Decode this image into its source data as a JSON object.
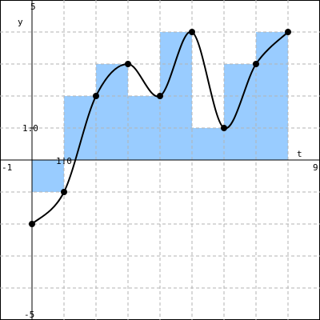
{
  "chart_data": {
    "type": "bar",
    "description_free": true,
    "xlabel": "t",
    "ylabel": "y",
    "xlim": [
      -1,
      9
    ],
    "ylim": [
      -5,
      5
    ],
    "grid": true,
    "tick_labels": {
      "x_min": "-1",
      "x_max": "9",
      "y_max": "5",
      "y_min": "-5",
      "x_unit": "1.0",
      "y_unit": "1.0"
    },
    "bars": [
      {
        "x0": 0,
        "x1": 1,
        "value": -1
      },
      {
        "x0": 1,
        "x1": 2,
        "value": 2
      },
      {
        "x0": 2,
        "x1": 3,
        "value": 3
      },
      {
        "x0": 3,
        "x1": 4,
        "value": 2
      },
      {
        "x0": 4,
        "x1": 5,
        "value": 4
      },
      {
        "x0": 5,
        "x1": 6,
        "value": 1
      },
      {
        "x0": 6,
        "x1": 7,
        "value": 3
      },
      {
        "x0": 7,
        "x1": 8,
        "value": 4
      }
    ],
    "points": [
      {
        "x": 0,
        "y": -2
      },
      {
        "x": 1,
        "y": -1
      },
      {
        "x": 2,
        "y": 2
      },
      {
        "x": 3,
        "y": 3
      },
      {
        "x": 4,
        "y": 2
      },
      {
        "x": 5,
        "y": 4
      },
      {
        "x": 6,
        "y": 1
      },
      {
        "x": 7,
        "y": 3
      },
      {
        "x": 8,
        "y": 4
      }
    ],
    "colors": {
      "bar_fill": "#99ccff",
      "curve": "#000000",
      "grid": "#b3b3b3",
      "axis": "#000000"
    }
  }
}
